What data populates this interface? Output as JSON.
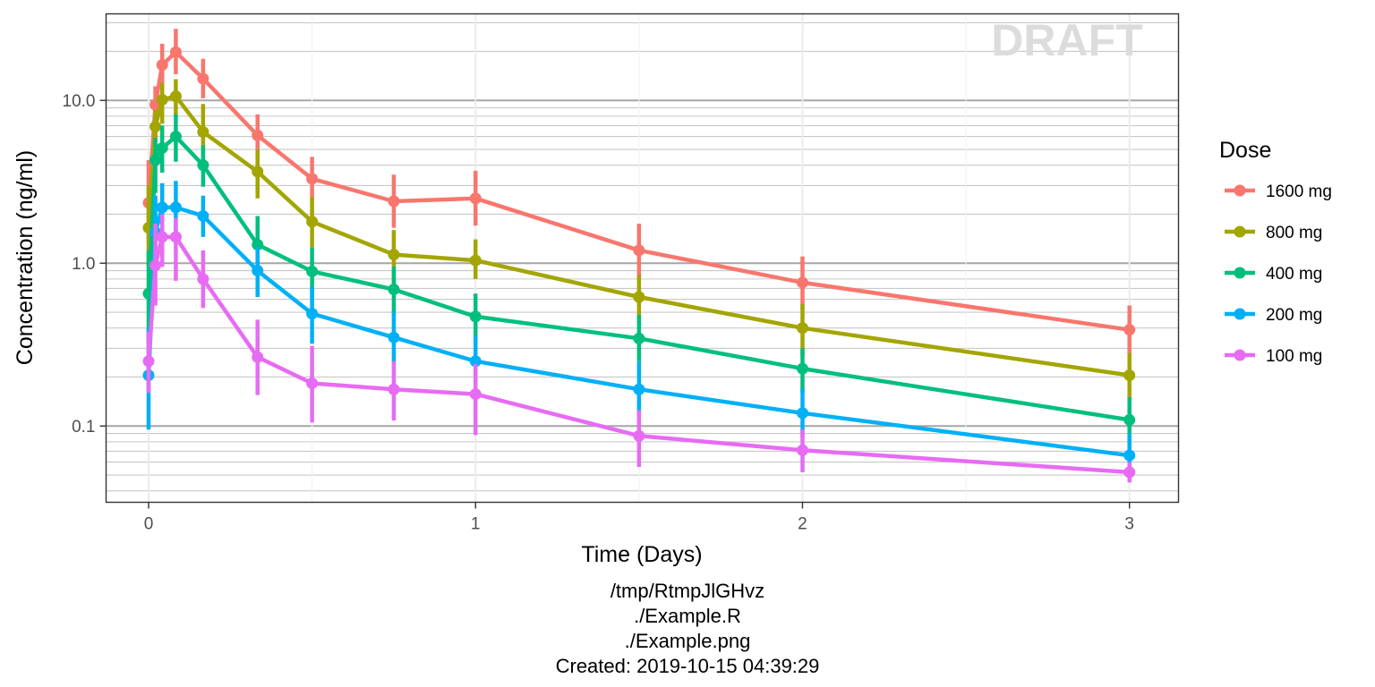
{
  "chart_data": {
    "type": "line",
    "title": "",
    "xlabel": "Time (Days)",
    "ylabel": "Concentration (ng/ml)",
    "xlim": [
      -0.13,
      3.15
    ],
    "ylim": [
      0.034,
      34
    ],
    "yscale": "log",
    "grid": true,
    "xticks": [
      0,
      1,
      2,
      3
    ],
    "xtick_labels": [
      "0",
      "1",
      "2",
      "3"
    ],
    "yticks": [
      0.1,
      1.0,
      10.0
    ],
    "ytick_labels": [
      "0.1",
      "1.0",
      "10.0"
    ],
    "legend_title": "Dose",
    "legend_position": "right",
    "watermark": "DRAFT",
    "x": [
      0,
      0.0208,
      0.0417,
      0.0833,
      0.1667,
      0.3333,
      0.5,
      0.75,
      1,
      1.5,
      2,
      3
    ],
    "series": [
      {
        "name": "1600 mg",
        "color": "#F8766D",
        "values": [
          2.35,
          9.4,
          16.5,
          19.8,
          13.6,
          6.1,
          3.3,
          2.4,
          2.5,
          1.2,
          0.76,
          0.39
        ],
        "lower": [
          1.3,
          5.9,
          12.0,
          14.5,
          10.3,
          4.4,
          2.4,
          1.65,
          1.7,
          0.82,
          0.52,
          0.27
        ],
        "upper": [
          4.3,
          12.2,
          22.3,
          27.5,
          18.0,
          8.2,
          4.5,
          3.5,
          3.7,
          1.75,
          1.1,
          0.55
        ]
      },
      {
        "name": "800 mg",
        "color": "#A3A500",
        "values": [
          1.65,
          6.9,
          10.1,
          10.6,
          6.4,
          3.65,
          1.8,
          1.13,
          1.04,
          0.62,
          0.4,
          0.205
        ],
        "lower": [
          0.95,
          4.2,
          7.2,
          7.9,
          4.3,
          2.5,
          1.25,
          0.7,
          0.8,
          0.42,
          0.27,
          0.14
        ],
        "upper": [
          3.0,
          8.7,
          12.8,
          13.5,
          9.5,
          5.0,
          2.55,
          1.6,
          1.4,
          0.85,
          0.56,
          0.28
        ]
      },
      {
        "name": "400 mg",
        "color": "#00BF7D",
        "values": [
          0.65,
          4.3,
          5.1,
          6.0,
          4.0,
          1.3,
          0.89,
          0.69,
          0.47,
          0.345,
          0.225,
          0.109
        ],
        "lower": [
          0.32,
          2.7,
          3.6,
          4.2,
          2.95,
          0.93,
          0.6,
          0.48,
          0.33,
          0.25,
          0.16,
          0.078
        ],
        "upper": [
          1.2,
          5.9,
          7.0,
          8.2,
          5.3,
          1.95,
          1.25,
          0.95,
          0.65,
          0.48,
          0.3,
          0.15
        ]
      },
      {
        "name": "200 mg",
        "color": "#00B0F6",
        "values": [
          0.205,
          1.55,
          2.2,
          2.2,
          1.95,
          0.9,
          0.49,
          0.35,
          0.25,
          0.168,
          0.12,
          0.066
        ],
        "lower": [
          0.095,
          0.9,
          1.55,
          1.5,
          1.45,
          0.62,
          0.32,
          0.24,
          0.18,
          0.115,
          0.085,
          0.052
        ],
        "upper": [
          0.4,
          2.6,
          3.1,
          3.2,
          2.6,
          1.25,
          0.72,
          0.5,
          0.36,
          0.25,
          0.17,
          0.09
        ]
      },
      {
        "name": "100 mg",
        "color": "#E76BF3",
        "values": [
          0.25,
          0.97,
          1.45,
          1.45,
          0.8,
          0.265,
          0.183,
          0.168,
          0.157,
          0.087,
          0.071,
          0.052
        ],
        "lower": [
          0.16,
          0.55,
          0.95,
          0.78,
          0.53,
          0.155,
          0.105,
          0.108,
          0.088,
          0.056,
          0.052,
          0.045
        ],
        "upper": [
          0.38,
          1.75,
          2.0,
          1.9,
          1.2,
          0.45,
          0.31,
          0.25,
          0.24,
          0.125,
          0.095,
          0.06
        ]
      }
    ]
  },
  "caption": {
    "lines": [
      "/tmp/RtmpJlGHvz",
      "./Example.R",
      "./Example.png",
      "Created: 2019-10-15 04:39:29"
    ]
  }
}
